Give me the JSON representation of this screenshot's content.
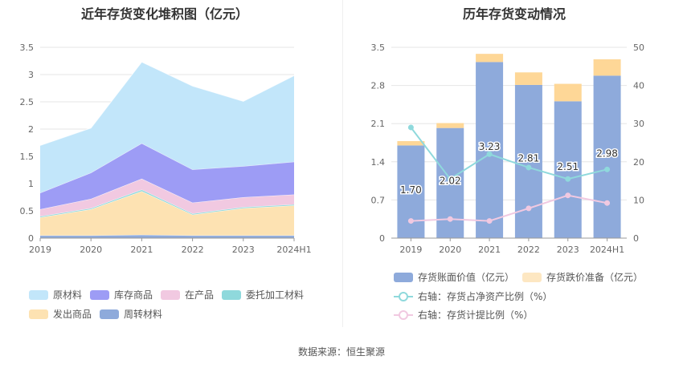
{
  "left_title": "近年存货变化堆积图（亿元）",
  "right_title": "历年存货变动情况",
  "source": "数据来源：恒生聚源",
  "chart_data": [
    {
      "type": "area",
      "stacked": true,
      "title": "近年存货变化堆积图（亿元）",
      "categories": [
        "2019",
        "2020",
        "2021",
        "2022",
        "2023",
        "2024H1"
      ],
      "ylim": [
        0,
        3.5
      ],
      "yticks": [
        "0",
        "0.5",
        "1",
        "1.5",
        "2",
        "2.5",
        "3",
        "3.5"
      ],
      "grid": true,
      "legend_position": "bottom",
      "series": [
        {
          "name": "周转材料",
          "color": "#8eaadb",
          "values": [
            0.05,
            0.05,
            0.06,
            0.05,
            0.05,
            0.05
          ]
        },
        {
          "name": "发出商品",
          "color": "#fde2b2",
          "values": [
            0.33,
            0.48,
            0.8,
            0.38,
            0.5,
            0.55
          ]
        },
        {
          "name": "委托加工材料",
          "color": "#8fd9dc",
          "values": [
            0.02,
            0.02,
            0.03,
            0.02,
            0.02,
            0.02
          ]
        },
        {
          "name": "在产品",
          "color": "#f1c9e1",
          "values": [
            0.13,
            0.17,
            0.2,
            0.2,
            0.18,
            0.18
          ]
        },
        {
          "name": "库存商品",
          "color": "#9d9cf5",
          "values": [
            0.3,
            0.48,
            0.65,
            0.61,
            0.57,
            0.6
          ]
        },
        {
          "name": "原材料",
          "color": "#c2e6fa",
          "values": [
            0.87,
            0.82,
            1.49,
            1.53,
            1.19,
            1.58
          ]
        }
      ],
      "legend_order": [
        "原材料",
        "库存商品",
        "在产品",
        "委托加工材料",
        "发出商品",
        "周转材料"
      ]
    },
    {
      "type": "bar",
      "stacked": true,
      "title": "历年存货变动情况",
      "categories": [
        "2019",
        "2020",
        "2021",
        "2022",
        "2023",
        "2024H1"
      ],
      "ylim": [
        0,
        3.5
      ],
      "yticks": [
        "0",
        "0.7",
        "1.4",
        "2.1",
        "2.8",
        "3.5"
      ],
      "y2lim": [
        0,
        50
      ],
      "y2ticks": [
        "0",
        "10",
        "20",
        "30",
        "40",
        "50"
      ],
      "grid": true,
      "legend_position": "bottom",
      "series": [
        {
          "name": "存货账面价值（亿元）",
          "color": "#8eaadb",
          "values": [
            1.7,
            2.02,
            3.23,
            2.81,
            2.51,
            2.98
          ],
          "labels": [
            "1.70",
            "2.02",
            "3.23",
            "2.81",
            "2.51",
            "2.98"
          ]
        },
        {
          "name": "存货跌价准备（亿元）",
          "color": "#fed797",
          "values": [
            0.08,
            0.09,
            0.15,
            0.23,
            0.32,
            0.3
          ]
        }
      ],
      "line_series": [
        {
          "name": "右轴：存货占净资产比例（%）",
          "color": "#8fd9dc",
          "axis": "right",
          "values": [
            29,
            15.5,
            22,
            18.5,
            15.5,
            18
          ]
        },
        {
          "name": "右轴：存货计提比例（%）",
          "color": "#f1c9e1",
          "axis": "right",
          "values": [
            4.5,
            5,
            4.5,
            7.8,
            11.2,
            9.2
          ]
        }
      ]
    }
  ]
}
